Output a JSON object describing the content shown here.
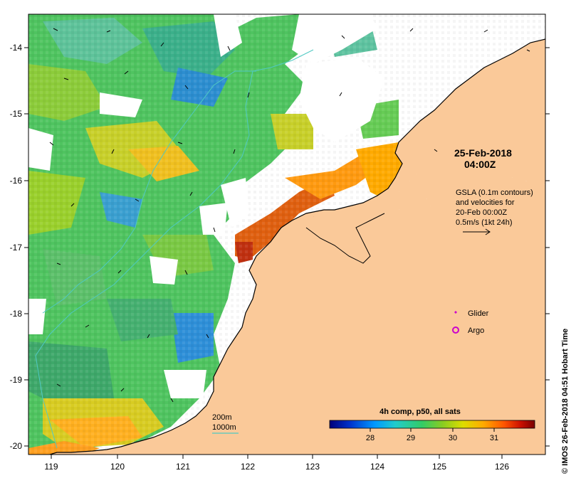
{
  "map": {
    "date_title": "25-Feb-2018",
    "time_title": "04:00Z",
    "gsla_note": {
      "line1": "GSLA (0.1m contours)",
      "line2": "and velocities for",
      "line3": "20-Feb 00:00Z",
      "line4": "0.5m/s (1kt 24h)"
    },
    "legend": {
      "glider": "Glider",
      "argo": "Argo",
      "glider_color": "#cc00cc",
      "argo_color": "#cc00cc"
    },
    "bathymetry": {
      "line1": "200m",
      "line2": "1000m",
      "color": "#4fc9c3"
    },
    "colorbar": {
      "title": "4h comp, p50, all sats",
      "ticks": [
        "28",
        "29",
        "30",
        "31"
      ],
      "colors": [
        "#00007a",
        "#0033cc",
        "#0099ff",
        "#22cccc",
        "#33cc66",
        "#66cc33",
        "#cccc00",
        "#ffaa00",
        "#ff5500",
        "#cc1100",
        "#7a0000"
      ]
    },
    "credit": "© IMOS 26-Feb-2018 04:51 Hobart Time",
    "axes": {
      "x_ticks": [
        "119",
        "120",
        "121",
        "122",
        "123",
        "124",
        "125",
        "126"
      ],
      "y_ticks": [
        "-14",
        "-15",
        "-16",
        "-17",
        "-18",
        "-19",
        "-20"
      ]
    },
    "colors": {
      "land": "#fac999",
      "cloud": "#ffffff"
    }
  }
}
